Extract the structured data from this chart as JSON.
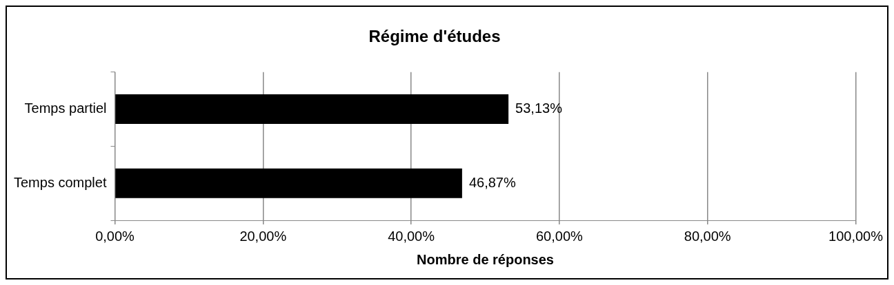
{
  "chart_data": {
    "type": "bar",
    "orientation": "horizontal",
    "title": "Régime d'études",
    "xlabel": "Nombre de réponses",
    "categories": [
      "Temps partiel",
      "Temps complet"
    ],
    "values": [
      53.13,
      46.87
    ],
    "value_labels": [
      "53,13%",
      "46,87%"
    ],
    "color": "#000000",
    "xlim": [
      0,
      100
    ],
    "xticks": [
      {
        "value": 0,
        "label": "0,00%"
      },
      {
        "value": 20,
        "label": "20,00%"
      },
      {
        "value": 40,
        "label": "40,00%"
      },
      {
        "value": 60,
        "label": "60,00%"
      },
      {
        "value": 80,
        "label": "80,00%"
      },
      {
        "value": 100,
        "label": "100,00%"
      }
    ],
    "grid": "x",
    "legend": false
  }
}
